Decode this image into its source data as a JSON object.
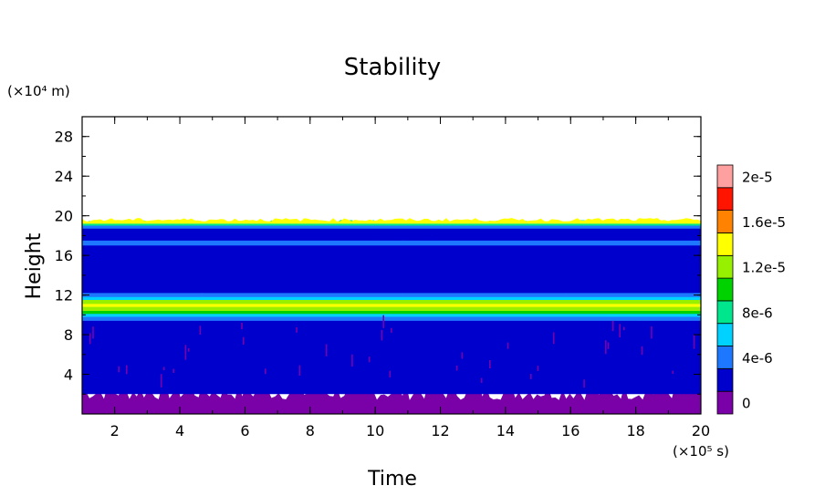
{
  "chart_data": {
    "type": "heatmap",
    "title": "Stability",
    "xlabel": "Time",
    "ylabel": "Height",
    "x_unit": "(×10⁵ s)",
    "y_unit": "(×10⁴ m)",
    "xlim": [
      1,
      20
    ],
    "ylim": [
      0,
      30
    ],
    "x_ticks": [
      2,
      4,
      6,
      8,
      10,
      12,
      14,
      16,
      18,
      20
    ],
    "y_ticks": [
      4,
      8,
      12,
      16,
      20,
      24,
      28
    ],
    "grid": false,
    "colorbar": {
      "levels": [
        {
          "value": 0.0,
          "color": "#7a00a8"
        },
        {
          "value": 2e-06,
          "color": "#0000cd"
        },
        {
          "value": 4e-06,
          "color": "#1e78ff"
        },
        {
          "value": 6e-06,
          "color": "#00d2ff"
        },
        {
          "value": 8e-06,
          "color": "#00e68c"
        },
        {
          "value": 1e-05,
          "color": "#00d200"
        },
        {
          "value": 1.2e-05,
          "color": "#96f000"
        },
        {
          "value": 1.4e-05,
          "color": "#ffff00"
        },
        {
          "value": 1.6e-05,
          "color": "#ff8200"
        },
        {
          "value": 1.8e-05,
          "color": "#ff1400"
        },
        {
          "value": 2e-05,
          "color": "#ffa0a0"
        }
      ],
      "tick_labels": [
        "0",
        "4e-6",
        "8e-6",
        "1.2e-5",
        "1.6e-5",
        "2e-5"
      ]
    },
    "profile": [
      {
        "z_top": 2.2,
        "value": 0.0
      },
      {
        "z_top": 9.6,
        "value": 2e-06
      },
      {
        "z_top": 10.0,
        "value": 4e-06
      },
      {
        "z_top": 10.3,
        "value": 6e-06
      },
      {
        "z_top": 10.6,
        "value": 1e-05
      },
      {
        "z_top": 11.0,
        "value": 1.3e-05
      },
      {
        "z_top": 11.3,
        "value": 1.5e-05
      },
      {
        "z_top": 11.7,
        "value": 1.2e-05
      },
      {
        "z_top": 12.0,
        "value": 7e-06
      },
      {
        "z_top": 12.4,
        "value": 4e-06
      },
      {
        "z_top": 17.2,
        "value": 2e-06
      },
      {
        "z_top": 17.7,
        "value": 4e-06
      },
      {
        "z_top": 18.2,
        "value": 2e-06
      },
      {
        "z_top": 18.9,
        "value": 2e-06
      },
      {
        "z_top": 19.2,
        "value": 5e-06
      },
      {
        "z_top": 19.4,
        "value": 9e-06
      },
      {
        "z_top": 19.6,
        "value": 1.4e-05
      }
    ]
  }
}
